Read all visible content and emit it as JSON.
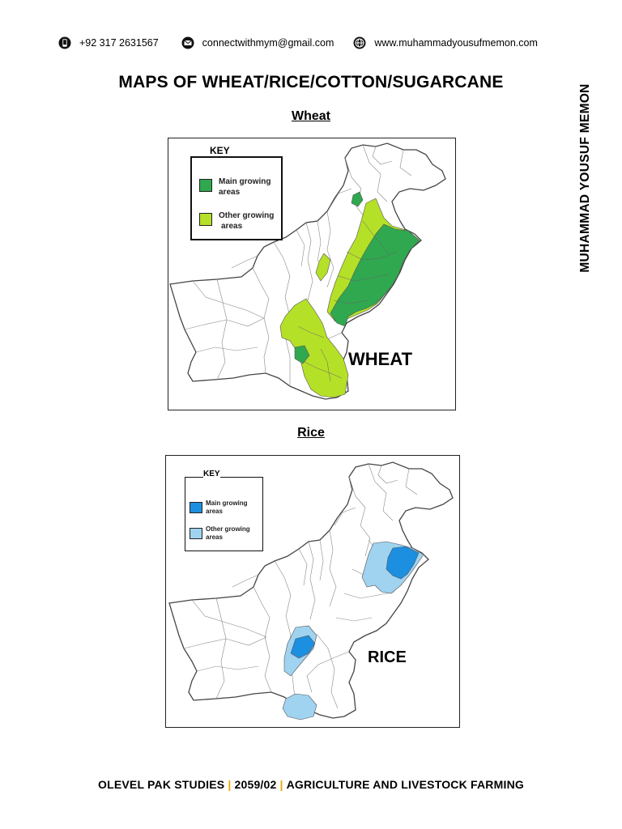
{
  "header": {
    "phone": "+92 317 2631567",
    "email": "connectwithmym@gmail.com",
    "website": "www.muhammadyousufmemon.com",
    "icons": [
      "phone-icon",
      "email-icon",
      "globe-icon"
    ]
  },
  "title": "MAPS OF WHEAT/RICE/COTTON/SUGARCANE",
  "side_author": "MUHAMMAD YOUSUF MEMON",
  "maps": {
    "wheat": {
      "heading": "Wheat",
      "label": "WHEAT",
      "key_title": "KEY",
      "main_label_1": "Main growing",
      "main_label_2": "areas",
      "other_label_1": "Other growing",
      "other_label_2": "areas",
      "main_color": "#2fa84f",
      "other_color": "#b5e028"
    },
    "rice": {
      "heading": "Rice",
      "label": "RICE",
      "key_title": "KEY",
      "main_label_1": "Main growing",
      "main_label_2": "areas",
      "other_label_1": "Other growing",
      "other_label_2": "areas",
      "main_color": "#1c8fe0",
      "other_color": "#9fd3f0"
    }
  },
  "footer": {
    "part1": "OLEVEL PAK STUDIES",
    "sep": "|",
    "part2": "2059/02",
    "part3": "AGRICULTURE AND LIVESTOCK FARMING"
  }
}
